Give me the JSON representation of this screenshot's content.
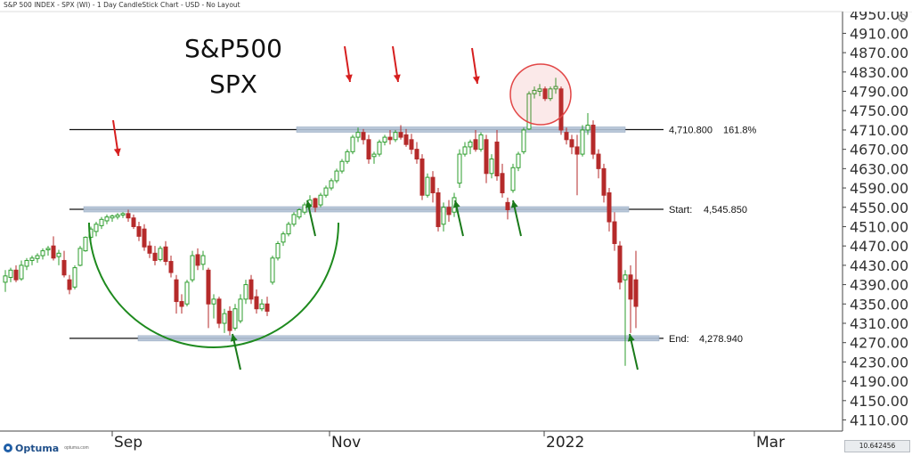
{
  "window": {
    "title": "S&P 500 INDEX - SPX (WI) - 1 Day CandleStick Chart - USD - No Layout",
    "controls": "◇ ▭ ✕"
  },
  "branding": {
    "name": "Optuma",
    "url": "optuma.com"
  },
  "corner_value": "10.642456",
  "colors": {
    "up": "#2e9e2e",
    "down": "#b52a2a",
    "level_band": "#b3c3d6",
    "arc": "#1e8a1e",
    "arrow_down": "#d61e1e",
    "arrow_up": "#1a7a1a",
    "circle": "#e24747"
  },
  "chart_data": {
    "type": "candlestick",
    "title": "S&P500",
    "subtitle": "SPX",
    "y_axis": {
      "ticks": [
        "4110.00",
        "4150.00",
        "4190.00",
        "4230.00",
        "4270.00",
        "4310.00",
        "4350.00",
        "4390.00",
        "4430.00",
        "4470.00",
        "4510.00",
        "4550.00",
        "4590.00",
        "4630.00",
        "4670.00",
        "4710.00",
        "4750.00",
        "4790.00",
        "4830.00",
        "4870.00",
        "4910.00"
      ],
      "range": [
        4087,
        4955
      ],
      "top_partial_label": "4950.00"
    },
    "x_axis": {
      "labels": [
        "Sep",
        "Nov",
        "2022",
        "Mar"
      ]
    },
    "levels": [
      {
        "label": "4,710.800",
        "extra": "161.8%",
        "value": 4710.8
      },
      {
        "label": "Start:",
        "extra": "4,545.850",
        "value": 4545.85
      },
      {
        "label": "End:",
        "extra": "4,278.940",
        "value": 4278.94
      }
    ],
    "candles": [
      {
        "x": 6,
        "o": 4395,
        "h": 4420,
        "l": 4375,
        "c": 4408
      },
      {
        "x": 12,
        "o": 4405,
        "h": 4425,
        "l": 4395,
        "c": 4420
      },
      {
        "x": 18,
        "o": 4420,
        "h": 4430,
        "l": 4395,
        "c": 4400
      },
      {
        "x": 24,
        "o": 4402,
        "h": 4440,
        "l": 4398,
        "c": 4430
      },
      {
        "x": 30,
        "o": 4428,
        "h": 4445,
        "l": 4420,
        "c": 4440
      },
      {
        "x": 36,
        "o": 4440,
        "h": 4450,
        "l": 4430,
        "c": 4445
      },
      {
        "x": 42,
        "o": 4444,
        "h": 4455,
        "l": 4435,
        "c": 4450
      },
      {
        "x": 48,
        "o": 4450,
        "h": 4465,
        "l": 4442,
        "c": 4460
      },
      {
        "x": 54,
        "o": 4462,
        "h": 4470,
        "l": 4450,
        "c": 4465
      },
      {
        "x": 60,
        "o": 4470,
        "h": 4490,
        "l": 4440,
        "c": 4445
      },
      {
        "x": 66,
        "o": 4448,
        "h": 4462,
        "l": 4430,
        "c": 4455
      },
      {
        "x": 72,
        "o": 4440,
        "h": 4460,
        "l": 4405,
        "c": 4410
      },
      {
        "x": 78,
        "o": 4400,
        "h": 4410,
        "l": 4370,
        "c": 4380
      },
      {
        "x": 84,
        "o": 4385,
        "h": 4430,
        "l": 4380,
        "c": 4425
      },
      {
        "x": 90,
        "o": 4430,
        "h": 4470,
        "l": 4428,
        "c": 4465
      },
      {
        "x": 96,
        "o": 4460,
        "h": 4490,
        "l": 4458,
        "c": 4488
      },
      {
        "x": 102,
        "o": 4488,
        "h": 4510,
        "l": 4480,
        "c": 4505
      },
      {
        "x": 108,
        "o": 4500,
        "h": 4520,
        "l": 4490,
        "c": 4515
      },
      {
        "x": 114,
        "o": 4512,
        "h": 4530,
        "l": 4505,
        "c": 4525
      },
      {
        "x": 120,
        "o": 4522,
        "h": 4535,
        "l": 4515,
        "c": 4530
      },
      {
        "x": 126,
        "o": 4528,
        "h": 4535,
        "l": 4520,
        "c": 4532
      },
      {
        "x": 132,
        "o": 4530,
        "h": 4538,
        "l": 4525,
        "c": 4534
      },
      {
        "x": 138,
        "o": 4534,
        "h": 4540,
        "l": 4528,
        "c": 4537
      },
      {
        "x": 144,
        "o": 4537,
        "h": 4545,
        "l": 4520,
        "c": 4528
      },
      {
        "x": 150,
        "o": 4528,
        "h": 4535,
        "l": 4505,
        "c": 4510
      },
      {
        "x": 156,
        "o": 4510,
        "h": 4520,
        "l": 4480,
        "c": 4490
      },
      {
        "x": 162,
        "o": 4505,
        "h": 4515,
        "l": 4460,
        "c": 4468
      },
      {
        "x": 168,
        "o": 4470,
        "h": 4480,
        "l": 4445,
        "c": 4455
      },
      {
        "x": 174,
        "o": 4455,
        "h": 4470,
        "l": 4430,
        "c": 4440
      },
      {
        "x": 180,
        "o": 4442,
        "h": 4470,
        "l": 4438,
        "c": 4465
      },
      {
        "x": 186,
        "o": 4468,
        "h": 4480,
        "l": 4430,
        "c": 4438
      },
      {
        "x": 192,
        "o": 4438,
        "h": 4450,
        "l": 4405,
        "c": 4415
      },
      {
        "x": 198,
        "o": 4400,
        "h": 4410,
        "l": 4330,
        "c": 4355
      },
      {
        "x": 204,
        "o": 4355,
        "h": 4370,
        "l": 4330,
        "c": 4345
      },
      {
        "x": 210,
        "o": 4350,
        "h": 4400,
        "l": 4345,
        "c": 4395
      },
      {
        "x": 216,
        "o": 4400,
        "h": 4460,
        "l": 4395,
        "c": 4450
      },
      {
        "x": 222,
        "o": 4452,
        "h": 4465,
        "l": 4420,
        "c": 4430
      },
      {
        "x": 228,
        "o": 4432,
        "h": 4460,
        "l": 4420,
        "c": 4450
      },
      {
        "x": 234,
        "o": 4420,
        "h": 4425,
        "l": 4300,
        "c": 4350
      },
      {
        "x": 240,
        "o": 4350,
        "h": 4370,
        "l": 4320,
        "c": 4360
      },
      {
        "x": 246,
        "o": 4360,
        "h": 4365,
        "l": 4300,
        "c": 4310
      },
      {
        "x": 252,
        "o": 4310,
        "h": 4340,
        "l": 4290,
        "c": 4330
      },
      {
        "x": 258,
        "o": 4335,
        "h": 4345,
        "l": 4285,
        "c": 4295
      },
      {
        "x": 264,
        "o": 4300,
        "h": 4350,
        "l": 4295,
        "c": 4340
      },
      {
        "x": 270,
        "o": 4315,
        "h": 4370,
        "l": 4310,
        "c": 4360
      },
      {
        "x": 276,
        "o": 4360,
        "h": 4400,
        "l": 4350,
        "c": 4390
      },
      {
        "x": 282,
        "o": 4400,
        "h": 4410,
        "l": 4350,
        "c": 4360
      },
      {
        "x": 288,
        "o": 4365,
        "h": 4380,
        "l": 4330,
        "c": 4340
      },
      {
        "x": 294,
        "o": 4340,
        "h": 4360,
        "l": 4335,
        "c": 4350
      },
      {
        "x": 300,
        "o": 4350,
        "h": 4365,
        "l": 4325,
        "c": 4335
      },
      {
        "x": 306,
        "o": 4395,
        "h": 4450,
        "l": 4390,
        "c": 4445
      },
      {
        "x": 312,
        "o": 4445,
        "h": 4480,
        "l": 4440,
        "c": 4475
      },
      {
        "x": 318,
        "o": 4478,
        "h": 4500,
        "l": 4470,
        "c": 4495
      },
      {
        "x": 324,
        "o": 4495,
        "h": 4520,
        "l": 4490,
        "c": 4515
      },
      {
        "x": 330,
        "o": 4515,
        "h": 4540,
        "l": 4510,
        "c": 4535
      },
      {
        "x": 336,
        "o": 4530,
        "h": 4548,
        "l": 4525,
        "c": 4545
      },
      {
        "x": 342,
        "o": 4540,
        "h": 4560,
        "l": 4535,
        "c": 4555
      },
      {
        "x": 348,
        "o": 4555,
        "h": 4575,
        "l": 4548,
        "c": 4565
      },
      {
        "x": 354,
        "o": 4568,
        "h": 4570,
        "l": 4540,
        "c": 4550
      },
      {
        "x": 360,
        "o": 4555,
        "h": 4580,
        "l": 4550,
        "c": 4575
      },
      {
        "x": 366,
        "o": 4575,
        "h": 4595,
        "l": 4570,
        "c": 4590
      },
      {
        "x": 372,
        "o": 4590,
        "h": 4610,
        "l": 4585,
        "c": 4605
      },
      {
        "x": 378,
        "o": 4605,
        "h": 4630,
        "l": 4600,
        "c": 4625
      },
      {
        "x": 384,
        "o": 4625,
        "h": 4650,
        "l": 4620,
        "c": 4645
      },
      {
        "x": 390,
        "o": 4645,
        "h": 4670,
        "l": 4640,
        "c": 4665
      },
      {
        "x": 396,
        "o": 4665,
        "h": 4700,
        "l": 4660,
        "c": 4695
      },
      {
        "x": 402,
        "o": 4695,
        "h": 4715,
        "l": 4685,
        "c": 4705
      },
      {
        "x": 408,
        "o": 4705,
        "h": 4712,
        "l": 4680,
        "c": 4690
      },
      {
        "x": 414,
        "o": 4690,
        "h": 4700,
        "l": 4640,
        "c": 4650
      },
      {
        "x": 420,
        "o": 4655,
        "h": 4665,
        "l": 4640,
        "c": 4660
      },
      {
        "x": 426,
        "o": 4660,
        "h": 4690,
        "l": 4655,
        "c": 4685
      },
      {
        "x": 432,
        "o": 4685,
        "h": 4700,
        "l": 4678,
        "c": 4695
      },
      {
        "x": 438,
        "o": 4695,
        "h": 4710,
        "l": 4680,
        "c": 4690
      },
      {
        "x": 444,
        "o": 4690,
        "h": 4710,
        "l": 4685,
        "c": 4705
      },
      {
        "x": 450,
        "o": 4705,
        "h": 4720,
        "l": 4690,
        "c": 4695
      },
      {
        "x": 456,
        "o": 4700,
        "h": 4712,
        "l": 4675,
        "c": 4680
      },
      {
        "x": 462,
        "o": 4690,
        "h": 4702,
        "l": 4660,
        "c": 4670
      },
      {
        "x": 468,
        "o": 4670,
        "h": 4685,
        "l": 4640,
        "c": 4650
      },
      {
        "x": 474,
        "o": 4650,
        "h": 4660,
        "l": 4565,
        "c": 4575
      },
      {
        "x": 480,
        "o": 4575,
        "h": 4620,
        "l": 4570,
        "c": 4612
      },
      {
        "x": 486,
        "o": 4612,
        "h": 4625,
        "l": 4560,
        "c": 4580
      },
      {
        "x": 492,
        "o": 4580,
        "h": 4590,
        "l": 4500,
        "c": 4510
      },
      {
        "x": 498,
        "o": 4515,
        "h": 4560,
        "l": 4500,
        "c": 4550
      },
      {
        "x": 504,
        "o": 4550,
        "h": 4565,
        "l": 4520,
        "c": 4535
      },
      {
        "x": 510,
        "o": 4540,
        "h": 4580,
        "l": 4530,
        "c": 4570
      },
      {
        "x": 516,
        "o": 4600,
        "h": 4670,
        "l": 4590,
        "c": 4660
      },
      {
        "x": 522,
        "o": 4660,
        "h": 4685,
        "l": 4655,
        "c": 4675
      },
      {
        "x": 528,
        "o": 4675,
        "h": 4690,
        "l": 4660,
        "c": 4685
      },
      {
        "x": 534,
        "o": 4690,
        "h": 4710,
        "l": 4665,
        "c": 4670
      },
      {
        "x": 540,
        "o": 4670,
        "h": 4705,
        "l": 4665,
        "c": 4700
      },
      {
        "x": 546,
        "o": 4690,
        "h": 4700,
        "l": 4600,
        "c": 4620
      },
      {
        "x": 552,
        "o": 4620,
        "h": 4660,
        "l": 4610,
        "c": 4650
      },
      {
        "x": 558,
        "o": 4685,
        "h": 4710,
        "l": 4605,
        "c": 4615
      },
      {
        "x": 564,
        "o": 4620,
        "h": 4640,
        "l": 4570,
        "c": 4580
      },
      {
        "x": 570,
        "o": 4560,
        "h": 4570,
        "l": 4525,
        "c": 4545
      },
      {
        "x": 576,
        "o": 4585,
        "h": 4640,
        "l": 4580,
        "c": 4632
      },
      {
        "x": 582,
        "o": 4632,
        "h": 4665,
        "l": 4625,
        "c": 4660
      },
      {
        "x": 588,
        "o": 4665,
        "h": 4715,
        "l": 4660,
        "c": 4710
      },
      {
        "x": 594,
        "o": 4712,
        "h": 4790,
        "l": 4710,
        "c": 4785
      },
      {
        "x": 600,
        "o": 4785,
        "h": 4800,
        "l": 4775,
        "c": 4792
      },
      {
        "x": 606,
        "o": 4790,
        "h": 4805,
        "l": 4780,
        "c": 4795
      },
      {
        "x": 612,
        "o": 4795,
        "h": 4800,
        "l": 4770,
        "c": 4775
      },
      {
        "x": 618,
        "o": 4775,
        "h": 4800,
        "l": 4770,
        "c": 4795
      },
      {
        "x": 624,
        "o": 4795,
        "h": 4818,
        "l": 4785,
        "c": 4800
      },
      {
        "x": 630,
        "o": 4795,
        "h": 4800,
        "l": 4700,
        "c": 4710
      },
      {
        "x": 636,
        "o": 4705,
        "h": 4715,
        "l": 4680,
        "c": 4690
      },
      {
        "x": 642,
        "o": 4690,
        "h": 4700,
        "l": 4660,
        "c": 4675
      },
      {
        "x": 648,
        "o": 4675,
        "h": 4700,
        "l": 4575,
        "c": 4660
      },
      {
        "x": 654,
        "o": 4660,
        "h": 4720,
        "l": 4655,
        "c": 4710
      },
      {
        "x": 660,
        "o": 4710,
        "h": 4745,
        "l": 4700,
        "c": 4720
      },
      {
        "x": 666,
        "o": 4720,
        "h": 4730,
        "l": 4650,
        "c": 4660
      },
      {
        "x": 672,
        "o": 4660,
        "h": 4670,
        "l": 4610,
        "c": 4630
      },
      {
        "x": 678,
        "o": 4630,
        "h": 4640,
        "l": 4560,
        "c": 4575
      },
      {
        "x": 684,
        "o": 4580,
        "h": 4590,
        "l": 4500,
        "c": 4520
      },
      {
        "x": 690,
        "o": 4520,
        "h": 4540,
        "l": 4460,
        "c": 4475
      },
      {
        "x": 696,
        "o": 4470,
        "h": 4480,
        "l": 4380,
        "c": 4395
      },
      {
        "x": 702,
        "o": 4400,
        "h": 4420,
        "l": 4222,
        "c": 4410
      },
      {
        "x": 708,
        "o": 4410,
        "h": 4430,
        "l": 4290,
        "c": 4360
      },
      {
        "x": 714,
        "o": 4400,
        "h": 4460,
        "l": 4300,
        "c": 4345
      }
    ],
    "annotations": {
      "down_arrows": [
        [
          133,
          175
        ],
        [
          393,
          92
        ],
        [
          447,
          92
        ],
        [
          536,
          94
        ]
      ],
      "up_arrows": [
        [
          354,
          260
        ],
        [
          520,
          260
        ],
        [
          585,
          260
        ],
        [
          270,
          410
        ],
        [
          716,
          410
        ]
      ],
      "arc": {
        "cx": 240,
        "r": 140
      },
      "circle": {
        "cx": 607,
        "cy": 106,
        "r": 34
      }
    }
  }
}
